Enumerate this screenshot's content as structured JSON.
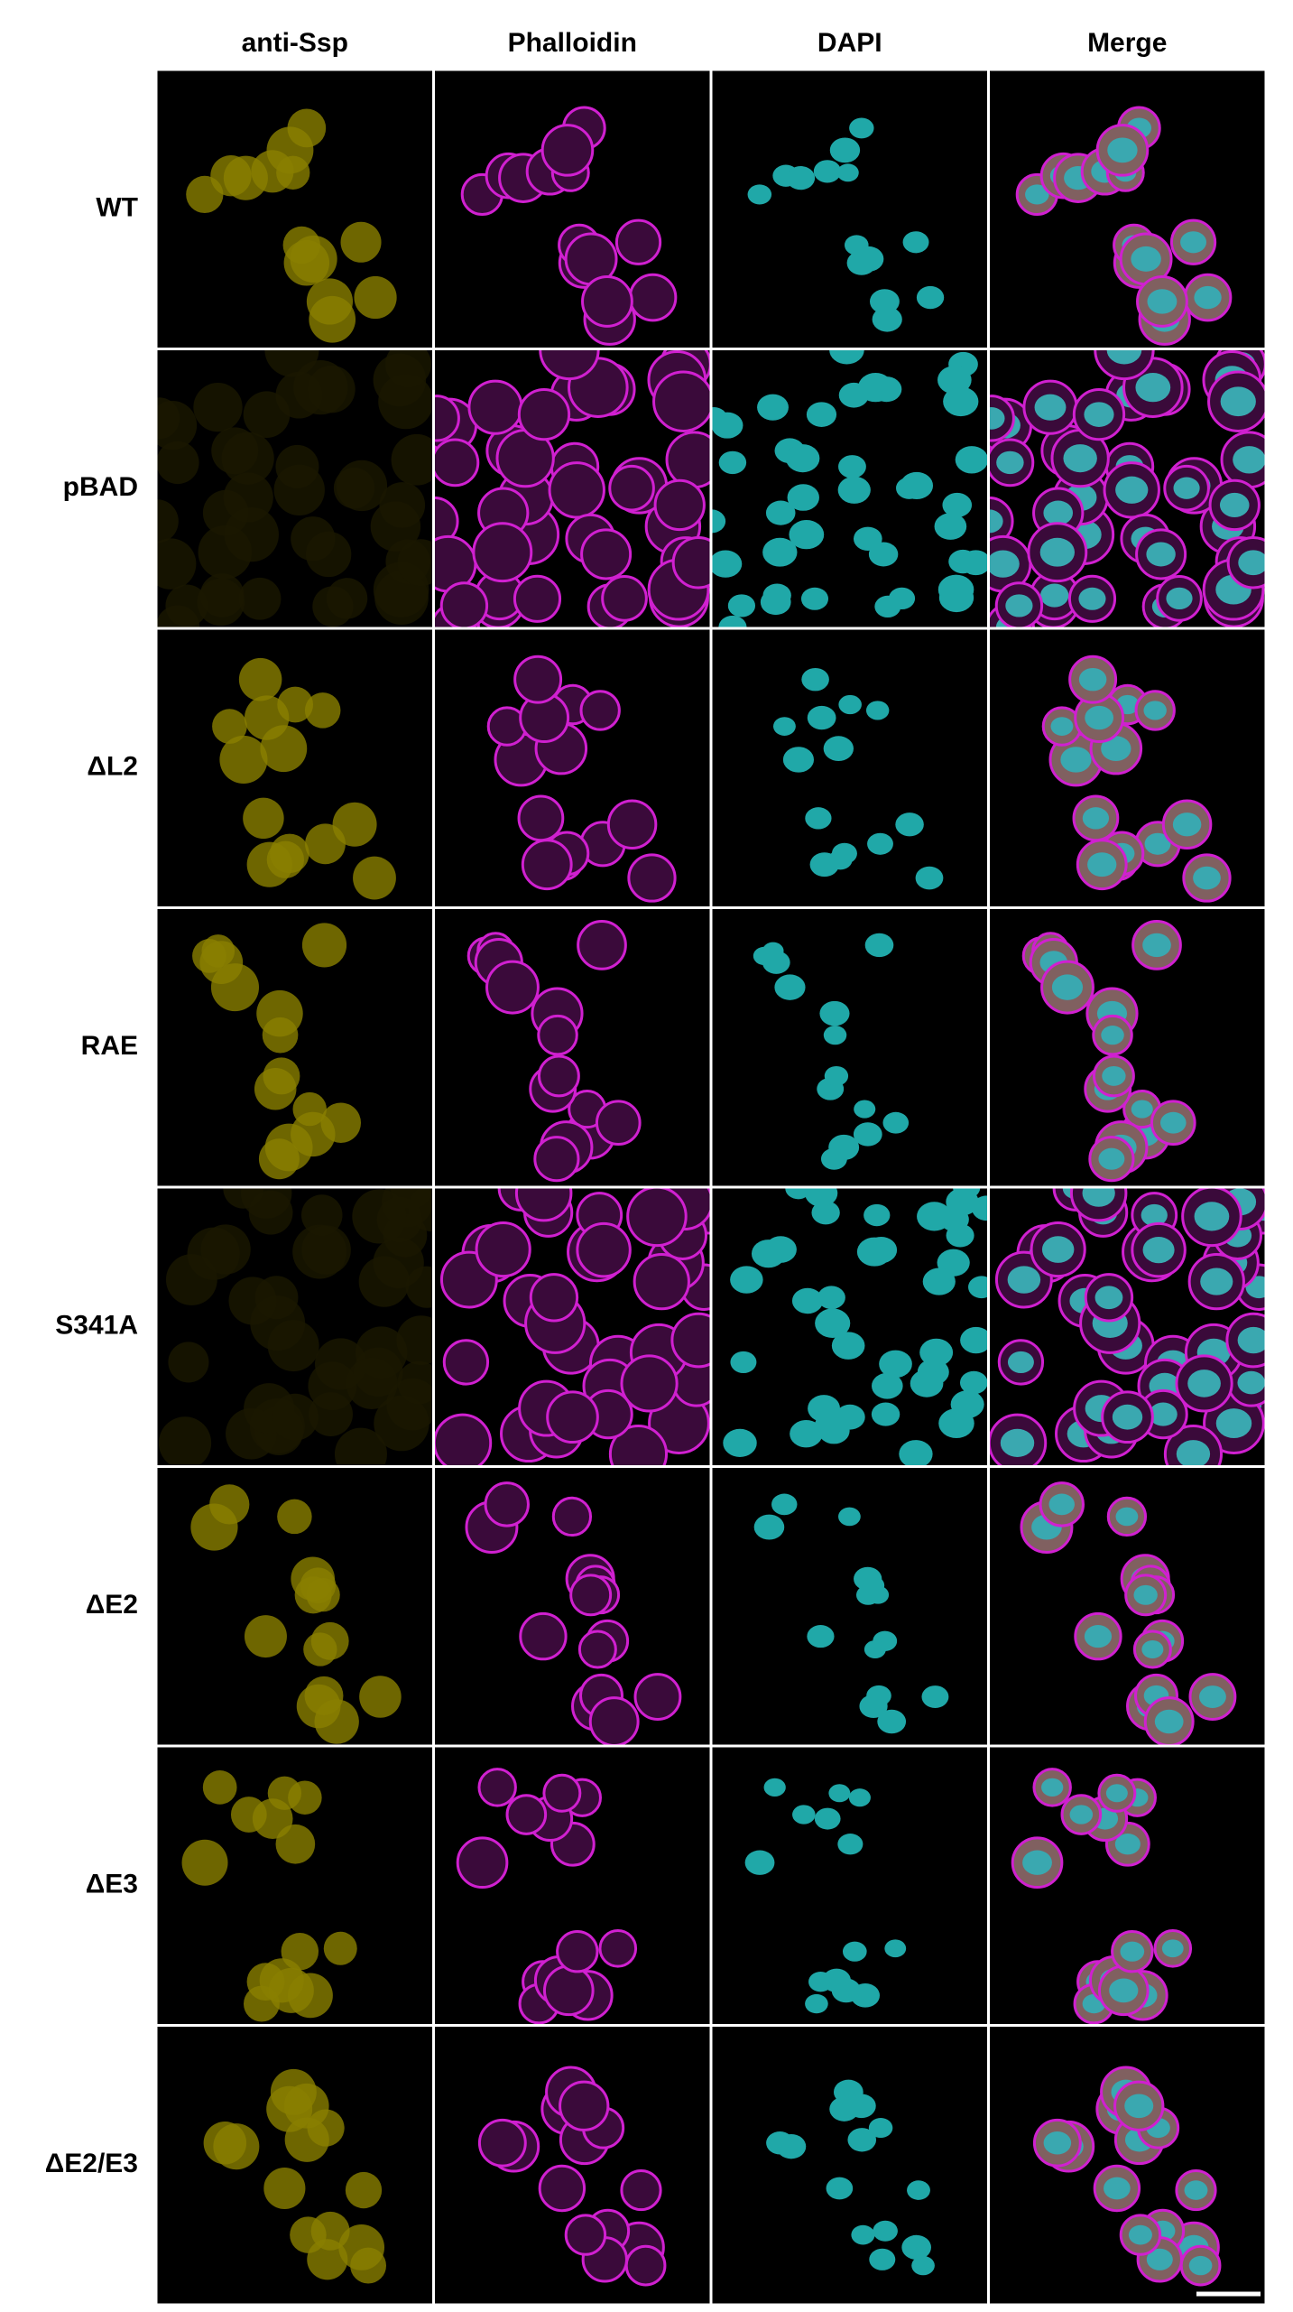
{
  "columns": [
    "anti-Ssp",
    "Phalloidin",
    "DAPI",
    "Merge"
  ],
  "rows": [
    "WT",
    "pBAD",
    "ΔL2",
    "RAE",
    "S341A",
    "ΔE2",
    "ΔE3",
    "ΔE2/E3"
  ]
}
